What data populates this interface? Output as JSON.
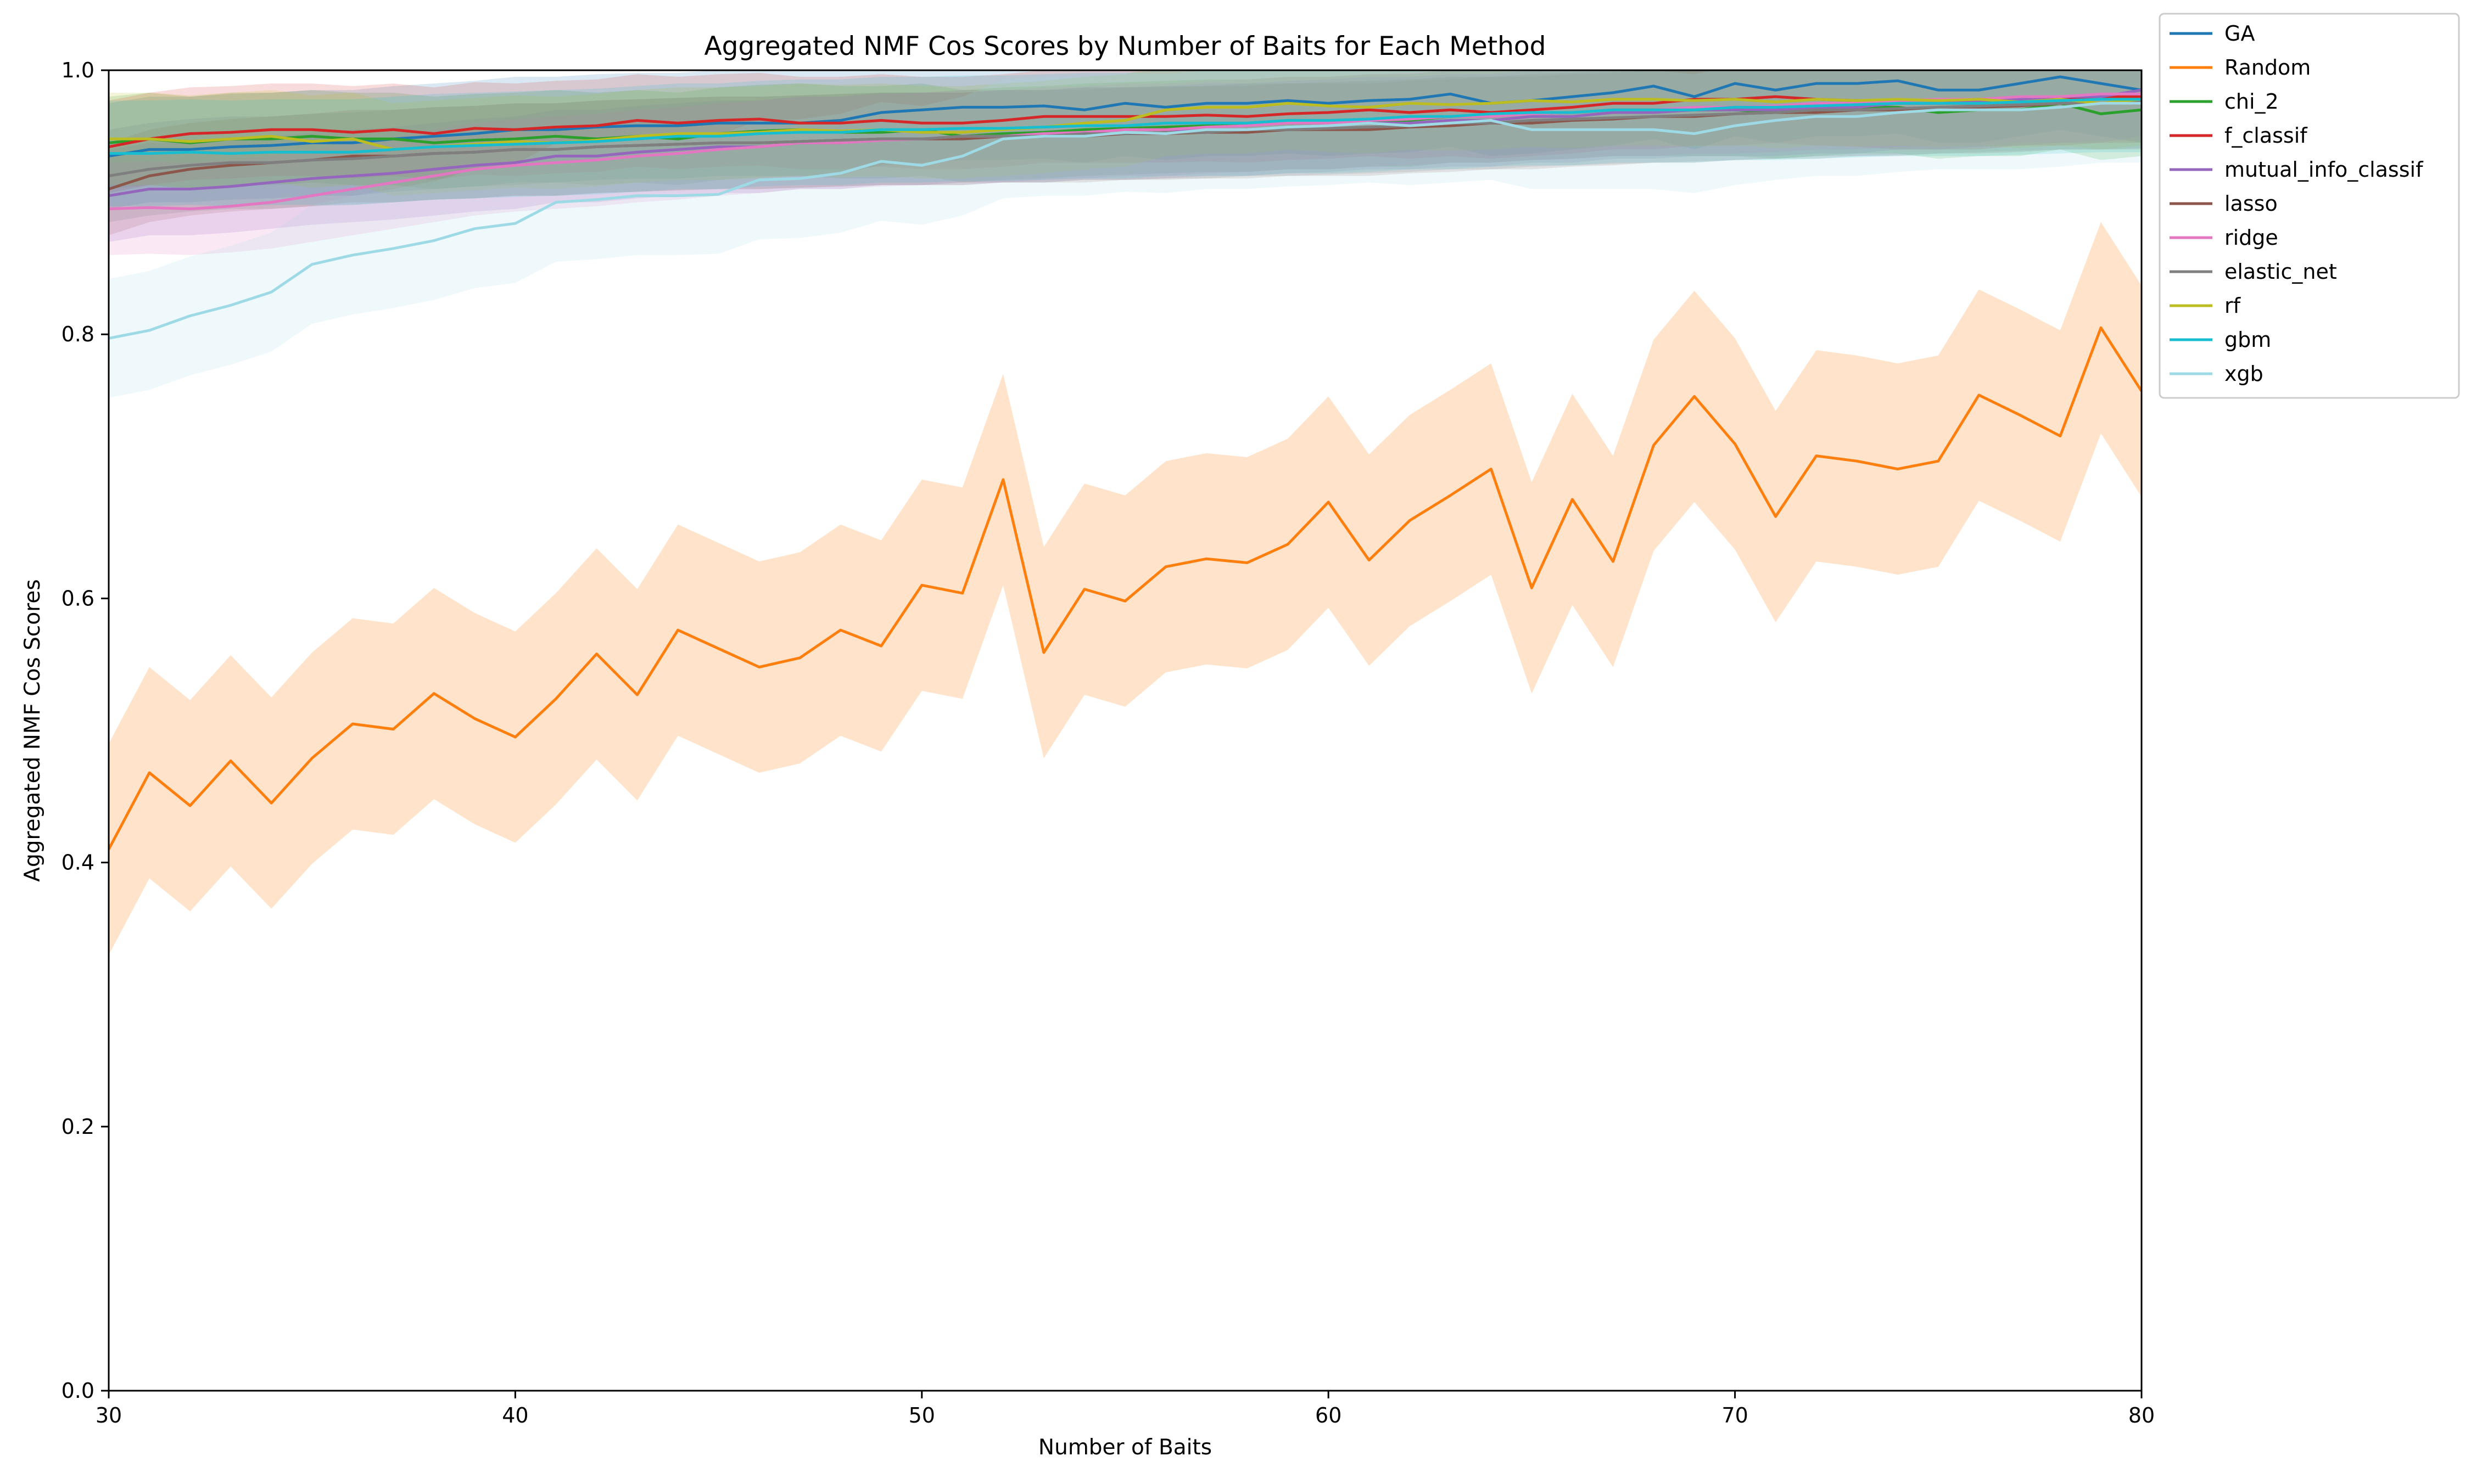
{
  "chart_data": {
    "type": "line",
    "title": "Aggregated NMF Cos Scores by Number of Baits for Each Method",
    "xlabel": "Number of Baits",
    "ylabel": "Aggregated NMF Cos Scores",
    "xlim": [
      30,
      80
    ],
    "ylim": [
      0.0,
      1.0
    ],
    "xticks": [
      "30",
      "40",
      "50",
      "60",
      "70",
      "80"
    ],
    "yticks": [
      "0.0",
      "0.2",
      "0.4",
      "0.6",
      "0.8",
      "1.0"
    ],
    "grid": false,
    "legend_position": "outside-top-right",
    "x_start": 30,
    "x_step": 1,
    "series": [
      {
        "name": "GA",
        "color": "#1f77b4",
        "band": 0.04,
        "values": [
          0.935,
          0.94,
          0.94,
          0.942,
          0.943,
          0.945,
          0.945,
          0.948,
          0.95,
          0.952,
          0.955,
          0.955,
          0.957,
          0.958,
          0.958,
          0.96,
          0.96,
          0.96,
          0.962,
          0.968,
          0.97,
          0.972,
          0.972,
          0.973,
          0.97,
          0.975,
          0.972,
          0.975,
          0.975,
          0.977,
          0.975,
          0.977,
          0.978,
          0.982,
          0.975,
          0.977,
          0.98,
          0.983,
          0.988,
          0.98,
          0.99,
          0.985,
          0.99,
          0.99,
          0.992,
          0.985,
          0.985,
          0.99,
          0.995,
          0.99,
          0.985
        ]
      },
      {
        "name": "Random",
        "color": "#ff7f0e",
        "band": 0.08,
        "band_opacity": 0.22,
        "values": [
          0.41,
          0.468,
          0.443,
          0.477,
          0.445,
          0.479,
          0.505,
          0.501,
          0.528,
          0.509,
          0.495,
          0.524,
          0.558,
          0.527,
          0.576,
          0.562,
          0.548,
          0.555,
          0.576,
          0.564,
          0.61,
          0.604,
          0.69,
          0.559,
          0.607,
          0.598,
          0.624,
          0.63,
          0.627,
          0.641,
          0.673,
          0.629,
          0.659,
          0.678,
          0.698,
          0.608,
          0.675,
          0.628,
          0.716,
          0.753,
          0.717,
          0.662,
          0.708,
          0.704,
          0.698,
          0.704,
          0.754,
          0.739,
          0.723,
          0.805,
          0.757
        ]
      },
      {
        "name": "chi_2",
        "color": "#2ca02c",
        "band": 0.035,
        "values": [
          0.945,
          0.948,
          0.945,
          0.948,
          0.948,
          0.95,
          0.948,
          0.948,
          0.945,
          0.947,
          0.948,
          0.95,
          0.948,
          0.95,
          0.948,
          0.952,
          0.954,
          0.955,
          0.953,
          0.953,
          0.955,
          0.95,
          0.952,
          0.953,
          0.955,
          0.956,
          0.957,
          0.958,
          0.958,
          0.96,
          0.96,
          0.962,
          0.962,
          0.965,
          0.965,
          0.967,
          0.968,
          0.97,
          0.97,
          0.97,
          0.97,
          0.968,
          0.97,
          0.972,
          0.972,
          0.968,
          0.97,
          0.97,
          0.975,
          0.967,
          0.97
        ]
      },
      {
        "name": "f_classif",
        "color": "#d62728",
        "band": 0.035,
        "values": [
          0.942,
          0.948,
          0.952,
          0.953,
          0.955,
          0.955,
          0.953,
          0.955,
          0.952,
          0.956,
          0.955,
          0.957,
          0.958,
          0.962,
          0.96,
          0.962,
          0.963,
          0.96,
          0.96,
          0.962,
          0.96,
          0.96,
          0.962,
          0.965,
          0.965,
          0.965,
          0.965,
          0.966,
          0.965,
          0.967,
          0.968,
          0.97,
          0.968,
          0.97,
          0.968,
          0.97,
          0.972,
          0.975,
          0.975,
          0.978,
          0.978,
          0.98,
          0.978,
          0.977,
          0.975,
          0.975,
          0.975,
          0.978,
          0.978,
          0.98,
          0.98
        ]
      },
      {
        "name": "mutual_info_classif",
        "color": "#9467bd",
        "band": 0.035,
        "values": [
          0.905,
          0.91,
          0.91,
          0.912,
          0.915,
          0.918,
          0.92,
          0.922,
          0.925,
          0.928,
          0.93,
          0.935,
          0.935,
          0.938,
          0.94,
          0.942,
          0.942,
          0.945,
          0.945,
          0.948,
          0.948,
          0.948,
          0.95,
          0.95,
          0.952,
          0.952,
          0.953,
          0.955,
          0.955,
          0.957,
          0.958,
          0.96,
          0.96,
          0.962,
          0.962,
          0.965,
          0.965,
          0.968,
          0.968,
          0.97,
          0.97,
          0.97,
          0.972,
          0.972,
          0.975,
          0.975,
          0.977,
          0.978,
          0.98,
          0.98,
          0.985
        ]
      },
      {
        "name": "lasso",
        "color": "#8c564b",
        "band": 0.035,
        "values": [
          0.91,
          0.92,
          0.925,
          0.928,
          0.93,
          0.932,
          0.935,
          0.935,
          0.937,
          0.938,
          0.94,
          0.94,
          0.942,
          0.943,
          0.944,
          0.945,
          0.945,
          0.946,
          0.947,
          0.948,
          0.948,
          0.948,
          0.95,
          0.95,
          0.95,
          0.952,
          0.952,
          0.953,
          0.953,
          0.955,
          0.955,
          0.955,
          0.957,
          0.958,
          0.96,
          0.96,
          0.962,
          0.963,
          0.965,
          0.965,
          0.967,
          0.968,
          0.968,
          0.97,
          0.97,
          0.972,
          0.972,
          0.973,
          0.975,
          0.975,
          0.975
        ]
      },
      {
        "name": "ridge",
        "color": "#e377c2",
        "band": 0.035,
        "values": [
          0.895,
          0.896,
          0.895,
          0.897,
          0.9,
          0.905,
          0.91,
          0.915,
          0.92,
          0.925,
          0.928,
          0.93,
          0.932,
          0.935,
          0.937,
          0.94,
          0.942,
          0.945,
          0.945,
          0.947,
          0.948,
          0.95,
          0.95,
          0.952,
          0.953,
          0.955,
          0.955,
          0.957,
          0.958,
          0.96,
          0.96,
          0.962,
          0.963,
          0.965,
          0.965,
          0.967,
          0.968,
          0.97,
          0.97,
          0.972,
          0.972,
          0.973,
          0.975,
          0.975,
          0.977,
          0.978,
          0.978,
          0.98,
          0.98,
          0.982,
          0.982
        ]
      },
      {
        "name": "elastic_net",
        "color": "#7f7f7f",
        "band": 0.035,
        "values": [
          0.92,
          0.925,
          0.928,
          0.93,
          0.93,
          0.932,
          0.933,
          0.935,
          0.937,
          0.938,
          0.94,
          0.94,
          0.942,
          0.943,
          0.944,
          0.945,
          0.945,
          0.946,
          0.947,
          0.948,
          0.948,
          0.95,
          0.95,
          0.95,
          0.952,
          0.952,
          0.953,
          0.953,
          0.955,
          0.955,
          0.956,
          0.957,
          0.958,
          0.96,
          0.96,
          0.962,
          0.963,
          0.964,
          0.965,
          0.966,
          0.967,
          0.968,
          0.97,
          0.97,
          0.971,
          0.972,
          0.973,
          0.974,
          0.975,
          0.975,
          0.976
        ]
      },
      {
        "name": "rf",
        "color": "#bcbd22",
        "band": 0.035,
        "values": [
          0.948,
          0.948,
          0.946,
          0.948,
          0.95,
          0.946,
          0.948,
          0.94,
          0.942,
          0.944,
          0.946,
          0.945,
          0.947,
          0.95,
          0.952,
          0.952,
          0.953,
          0.955,
          0.954,
          0.955,
          0.953,
          0.953,
          0.955,
          0.957,
          0.96,
          0.962,
          0.97,
          0.972,
          0.972,
          0.975,
          0.973,
          0.972,
          0.975,
          0.974,
          0.975,
          0.977,
          0.976,
          0.978,
          0.978,
          0.977,
          0.978,
          0.976,
          0.978,
          0.977,
          0.978,
          0.977,
          0.978,
          0.976,
          0.978,
          0.975,
          0.978
        ]
      },
      {
        "name": "gbm",
        "color": "#17becf",
        "band": 0.04,
        "values": [
          0.937,
          0.937,
          0.938,
          0.937,
          0.938,
          0.938,
          0.938,
          0.94,
          0.942,
          0.943,
          0.944,
          0.945,
          0.946,
          0.948,
          0.95,
          0.95,
          0.952,
          0.953,
          0.953,
          0.955,
          0.955,
          0.956,
          0.956,
          0.957,
          0.958,
          0.958,
          0.96,
          0.96,
          0.96,
          0.962,
          0.962,
          0.963,
          0.965,
          0.965,
          0.967,
          0.968,
          0.968,
          0.97,
          0.97,
          0.97,
          0.972,
          0.972,
          0.973,
          0.974,
          0.975,
          0.975,
          0.975,
          0.976,
          0.977,
          0.978,
          0.978
        ]
      },
      {
        "name": "xgb",
        "color": "#9edae5",
        "band": 0.045,
        "values": [
          0.797,
          0.803,
          0.814,
          0.822,
          0.832,
          0.853,
          0.86,
          0.865,
          0.871,
          0.88,
          0.884,
          0.9,
          0.902,
          0.905,
          0.905,
          0.906,
          0.917,
          0.918,
          0.922,
          0.931,
          0.928,
          0.935,
          0.948,
          0.95,
          0.95,
          0.953,
          0.952,
          0.955,
          0.955,
          0.957,
          0.958,
          0.96,
          0.958,
          0.96,
          0.962,
          0.955,
          0.955,
          0.955,
          0.955,
          0.952,
          0.958,
          0.962,
          0.965,
          0.965,
          0.968,
          0.97,
          0.97,
          0.97,
          0.972,
          0.975,
          0.975
        ]
      }
    ]
  }
}
